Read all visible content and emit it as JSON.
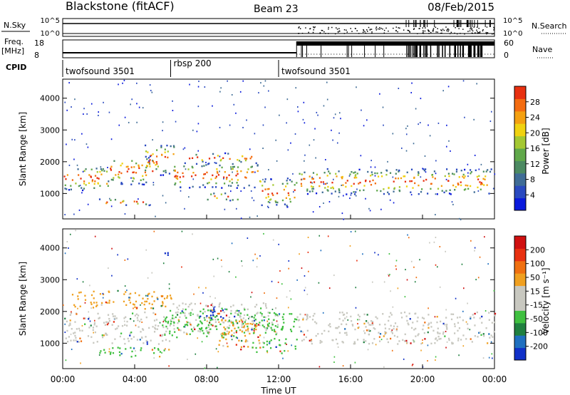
{
  "header": {
    "title": "Blackstone (fitACF)",
    "beam": "Beam 23",
    "date": "08/Feb/2015"
  },
  "panels": {
    "nsky_label": "N.Sky",
    "nsearch_label": "N.Search",
    "nsky_ticks": [
      "10^5",
      "10^0"
    ],
    "freq_label": "Freq.",
    "freq_unit": "[MHz]",
    "freq_ticks": [
      "18",
      "8"
    ],
    "nave_label": "Nave",
    "nave_ticks": [
      "60",
      "0"
    ],
    "cpid_label": "CPID",
    "cpid_segments": [
      {
        "name": "twofsound 3501",
        "start": 0,
        "end": 6
      },
      {
        "name": "rbsp 200",
        "start": 6,
        "end": 12
      },
      {
        "name": "twofsound 3501",
        "start": 12,
        "end": 24
      }
    ]
  },
  "chart_data": [
    {
      "type": "heatmap",
      "name": "power",
      "ylabel": "Slant Range [km]",
      "ylim": [
        200,
        4600
      ],
      "yticks": [
        1000,
        2000,
        3000,
        4000
      ],
      "xlim": [
        0,
        24
      ],
      "colorbar_label": "Power [dB]",
      "colorbar_ticks": [
        4,
        8,
        12,
        16,
        20,
        24,
        28
      ],
      "colorbar_colors": [
        "#0a1adc",
        "#2a4ac0",
        "#3f6c96",
        "#4c8a62",
        "#60a84a",
        "#a4c832",
        "#f0d210",
        "#f4a010",
        "#f46c10",
        "#e83010"
      ],
      "bands": [
        {
          "t0": 0,
          "t1": 2.5,
          "r0": 1100,
          "r1": 1900
        },
        {
          "t0": 2.5,
          "t1": 5.0,
          "r0": 1300,
          "r1": 2200
        },
        {
          "t0": 4.5,
          "t1": 6.2,
          "r0": 1600,
          "r1": 2600
        },
        {
          "t0": 6.0,
          "t1": 11.0,
          "r0": 1200,
          "r1": 2000
        },
        {
          "t0": 7.0,
          "t1": 10.5,
          "r0": 2000,
          "r1": 2300
        },
        {
          "t0": 8.0,
          "t1": 10.0,
          "r0": 800,
          "r1": 1050
        },
        {
          "t0": 2.0,
          "t1": 5.0,
          "r0": 650,
          "r1": 850
        },
        {
          "t0": 11.0,
          "t1": 13.0,
          "r0": 600,
          "r1": 1500
        },
        {
          "t0": 13.0,
          "t1": 24.0,
          "r0": 1000,
          "r1": 1800
        }
      ]
    },
    {
      "type": "heatmap",
      "name": "velocity",
      "ylabel": "Slant Range [km]",
      "ylim": [
        200,
        4600
      ],
      "yticks": [
        1000,
        2000,
        3000,
        4000
      ],
      "xlim": [
        0,
        24
      ],
      "xlabel": "Time UT",
      "xticks": [
        "00:00",
        "04:00",
        "08:00",
        "12:00",
        "16:00",
        "20:00",
        "00:00"
      ],
      "colorbar_label": "Velocity [m s⁻¹]",
      "colorbar_ticks": [
        "200",
        "100",
        "50",
        "15",
        "-15",
        "-50",
        "-100",
        "-200"
      ],
      "colorbar_colors": [
        "#1030c8",
        "#2070c0",
        "#208040",
        "#40c040",
        "#c8c8c0",
        "#c8c8c0",
        "#f0a020",
        "#f07010",
        "#e83010",
        "#d01010"
      ],
      "bands": [
        {
          "t0": 0,
          "t1": 6,
          "r0": 1000,
          "r1": 2000,
          "color": "#c8c8c0"
        },
        {
          "t0": 6,
          "t1": 12,
          "r0": 1300,
          "r1": 2300,
          "color": "#c8c8c0"
        },
        {
          "t0": 13,
          "t1": 24,
          "r0": 1000,
          "r1": 2000,
          "color": "#c8c8c0"
        },
        {
          "t0": 5.5,
          "t1": 10.5,
          "r0": 1200,
          "r1": 2100,
          "color": "#40c040"
        },
        {
          "t0": 7.5,
          "t1": 10.0,
          "r0": 1800,
          "r1": 2100,
          "color": "#1030c8"
        },
        {
          "t0": 8.5,
          "t1": 11.0,
          "r0": 800,
          "r1": 1800,
          "color": "#f0a020"
        },
        {
          "t0": 10.5,
          "t1": 13.0,
          "r0": 700,
          "r1": 2000,
          "color": "#40c040"
        },
        {
          "t0": 2.0,
          "t1": 6.0,
          "r0": 600,
          "r1": 900,
          "color": "#40c040"
        },
        {
          "t0": 0.5,
          "t1": 6.0,
          "r0": 2100,
          "r1": 2700,
          "color": "#f0a020"
        },
        {
          "t0": 5.5,
          "t1": 6.0,
          "r0": 3700,
          "r1": 4000,
          "color": "#1030c8"
        }
      ]
    }
  ]
}
